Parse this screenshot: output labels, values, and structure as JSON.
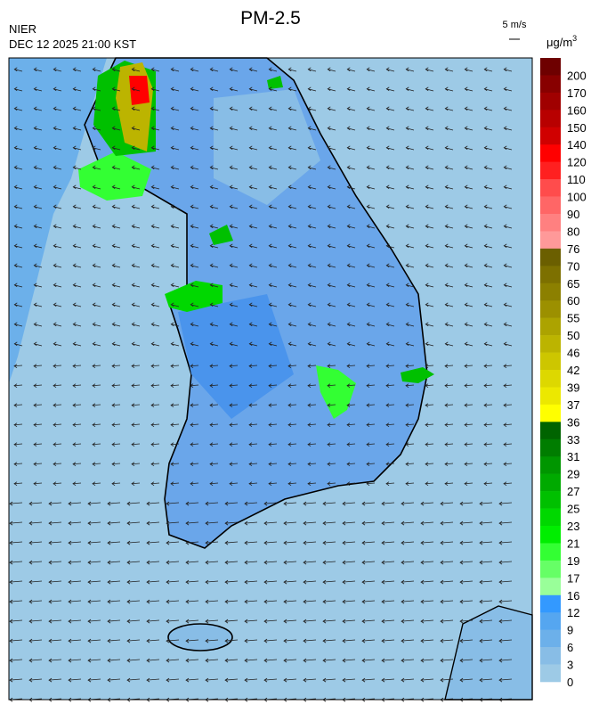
{
  "header": {
    "title": "PM-2.5",
    "agency": "NIER",
    "timestamp": "DEC 12 2025 21:00 KST",
    "wind_scale": "5 m/s"
  },
  "legend": {
    "unit": "μg/m",
    "unit_sup": "3",
    "ticks": [
      200,
      170,
      160,
      150,
      140,
      120,
      110,
      100,
      90,
      80,
      76,
      70,
      65,
      60,
      55,
      50,
      46,
      42,
      39,
      37,
      36,
      33,
      31,
      29,
      27,
      25,
      23,
      21,
      19,
      17,
      16,
      12,
      9,
      6,
      3,
      0
    ],
    "colors": [
      "#6e0000",
      "#880000",
      "#a00000",
      "#b80000",
      "#d00000",
      "#ff0000",
      "#ff2020",
      "#ff4c4c",
      "#ff6666",
      "#ff8080",
      "#ff9999",
      "#6b5f00",
      "#7d7000",
      "#8c8000",
      "#9c9000",
      "#aca300",
      "#bcb400",
      "#cdc600",
      "#ddd800",
      "#ece800",
      "#ffff00",
      "#006400",
      "#007d00",
      "#009600",
      "#00aa00",
      "#00c000",
      "#00d800",
      "#00ee00",
      "#33ff33",
      "#66ff66",
      "#99ff99",
      "#3399ff",
      "#55a6f0",
      "#6cb0ea",
      "#88bde6",
      "#9dcae6"
    ]
  }
}
